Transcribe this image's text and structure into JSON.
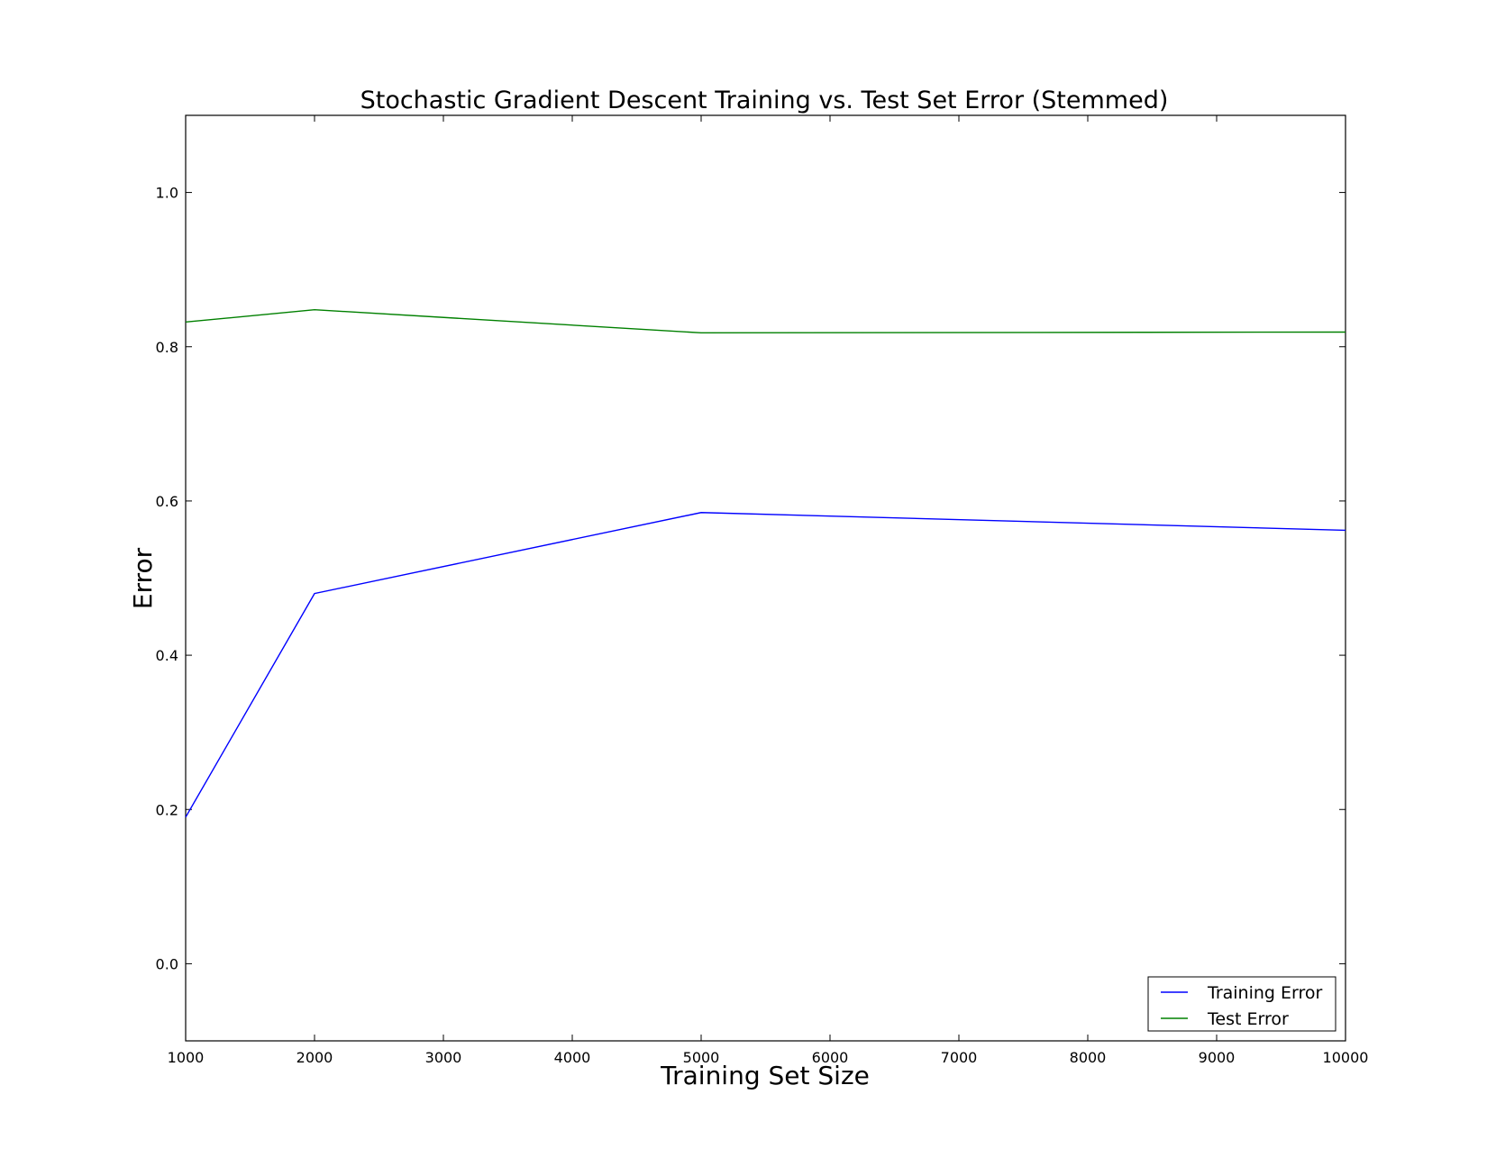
{
  "chart_data": {
    "type": "line",
    "title": "Stochastic Gradient Descent Training vs. Test Set Error (Stemmed)",
    "xlabel": "Training Set Size",
    "ylabel": "Error",
    "xlim": [
      1000,
      10000
    ],
    "ylim": [
      -0.1,
      1.1
    ],
    "xticks": [
      1000,
      2000,
      3000,
      4000,
      5000,
      6000,
      7000,
      8000,
      9000,
      10000
    ],
    "xtick_labels": [
      "1000",
      "2000",
      "3000",
      "4000",
      "5000",
      "6000",
      "7000",
      "8000",
      "9000",
      "10000"
    ],
    "yticks": [
      0.0,
      0.2,
      0.4,
      0.6,
      0.8,
      1.0
    ],
    "ytick_labels": [
      "0.0",
      "0.2",
      "0.4",
      "0.6",
      "0.8",
      "1.0"
    ],
    "grid": false,
    "legend_position": "lower-right",
    "x": [
      1000,
      2000,
      5000,
      10000
    ],
    "series": [
      {
        "name": "Training Error",
        "color": "#0000ff",
        "values": [
          0.19,
          0.48,
          0.585,
          0.562
        ]
      },
      {
        "name": "Test Error",
        "color": "#008000",
        "values": [
          0.832,
          0.848,
          0.818,
          0.819
        ]
      }
    ]
  }
}
